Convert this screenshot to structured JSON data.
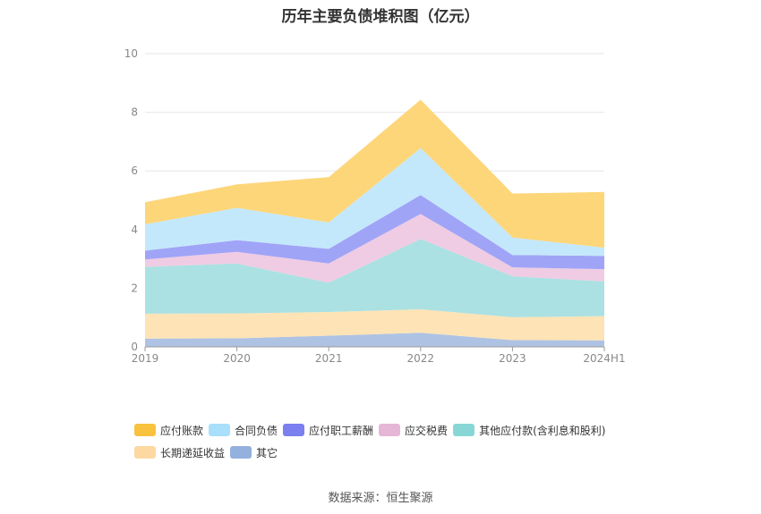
{
  "title": "历年主要负债堆积图（亿元）",
  "source": "数据来源：恒生聚源",
  "chart_data": {
    "type": "area",
    "stacked": true,
    "title": "历年主要负债堆积图（亿元）",
    "categories": [
      "2019",
      "2020",
      "2021",
      "2022",
      "2023",
      "2024H1"
    ],
    "ylim": [
      0,
      10
    ],
    "yticks": [
      "0",
      "2",
      "4",
      "6",
      "8",
      "10"
    ],
    "grid": true,
    "legend_position": "bottom",
    "series": [
      {
        "name": "其它",
        "color": "#aec3e3",
        "values": [
          0.28,
          0.29,
          0.38,
          0.48,
          0.23,
          0.22
        ]
      },
      {
        "name": "长期递延收益",
        "color": "#fde3b6",
        "values": [
          0.85,
          0.85,
          0.81,
          0.8,
          0.78,
          0.83
        ]
      },
      {
        "name": "其他应付款(含利息和股利)",
        "color": "#abe1e2",
        "values": [
          1.6,
          1.7,
          1.0,
          2.4,
          1.4,
          1.18
        ]
      },
      {
        "name": "应交税费",
        "color": "#efcce3",
        "values": [
          0.25,
          0.4,
          0.65,
          0.85,
          0.3,
          0.42
        ]
      },
      {
        "name": "应付职工薪酬",
        "color": "#a0a4f7",
        "values": [
          0.3,
          0.4,
          0.5,
          0.65,
          0.42,
          0.45
        ]
      },
      {
        "name": "合同负债",
        "color": "#c4e8fb",
        "values": [
          0.9,
          1.1,
          0.9,
          1.6,
          0.6,
          0.28
        ]
      },
      {
        "name": "应付账款",
        "color": "#fdd67a",
        "values": [
          0.75,
          0.8,
          1.55,
          1.65,
          1.5,
          1.9
        ]
      }
    ],
    "legend": [
      {
        "name": "应付账款",
        "color": "#f8c23e"
      },
      {
        "name": "合同负债",
        "color": "#a9dffb"
      },
      {
        "name": "应付职工薪酬",
        "color": "#7b7ff0"
      },
      {
        "name": "应交税费",
        "color": "#e6b6d6"
      },
      {
        "name": "其他应付款(含利息和股利)",
        "color": "#89d6d7"
      },
      {
        "name": "长期递延收益",
        "color": "#fdd9a1"
      },
      {
        "name": "其它",
        "color": "#94b0dc"
      }
    ]
  }
}
